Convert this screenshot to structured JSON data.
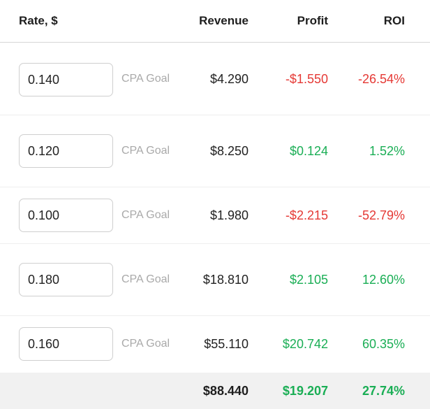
{
  "header": {
    "rate": "Rate, $",
    "revenue": "Revenue",
    "profit": "Profit",
    "roi": "ROI"
  },
  "rows": [
    {
      "rate": "0.140",
      "goal": "CPA Goal",
      "revenue": "$4.290",
      "profit": "-$1.550",
      "roi": "-26.54%",
      "status": "negative"
    },
    {
      "rate": "0.120",
      "goal": "CPA Goal",
      "revenue": "$8.250",
      "profit": "$0.124",
      "roi": "1.52%",
      "status": "positive"
    },
    {
      "rate": "0.100",
      "goal": "CPA Goal",
      "revenue": "$1.980",
      "profit": "-$2.215",
      "roi": "-52.79%",
      "status": "negative"
    },
    {
      "rate": "0.180",
      "goal": "CPA Goal",
      "revenue": "$18.810",
      "profit": "$2.105",
      "roi": "12.60%",
      "status": "positive"
    },
    {
      "rate": "0.160",
      "goal": "CPA Goal",
      "revenue": "$55.110",
      "profit": "$20.742",
      "roi": "60.35%",
      "status": "positive"
    }
  ],
  "total": {
    "revenue": "$88.440",
    "profit": "$19.207",
    "roi": "27.74%"
  },
  "colors": {
    "negative": "#e53935",
    "positive": "#1aae55",
    "total_background": "#f1f1f1"
  }
}
